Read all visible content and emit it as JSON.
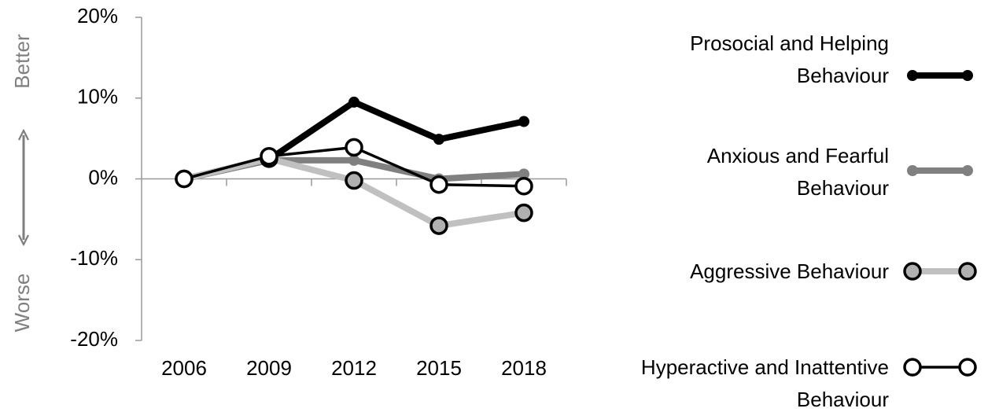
{
  "chart_data": {
    "type": "line",
    "categories": [
      "2006",
      "2009",
      "2012",
      "2015",
      "2018"
    ],
    "series": [
      {
        "name": "Prosocial and Helping Behaviour",
        "color": "#000000",
        "values": [
          0,
          2.4,
          9.5,
          4.9,
          7.1
        ]
      },
      {
        "name": "Anxious and Fearful Behaviour",
        "color": "#808080",
        "values": [
          0,
          2.3,
          2.3,
          0,
          0.6
        ]
      },
      {
        "name": "Aggressive Behaviour",
        "color": "#c0c0c0",
        "values": [
          0,
          2.5,
          -0.2,
          -5.8,
          -4.2
        ]
      },
      {
        "name": "Hyperactive and Inattentive Behaviour",
        "color": "#000000",
        "values": [
          0,
          2.8,
          3.9,
          -0.7,
          -0.9
        ]
      }
    ],
    "ylim": [
      -20,
      20
    ],
    "yticks": [
      {
        "value": -20,
        "label": "-20%"
      },
      {
        "value": -10,
        "label": "-10%"
      },
      {
        "value": 0,
        "label": "0%"
      },
      {
        "value": 10,
        "label": "10%"
      },
      {
        "value": 20,
        "label": "20%"
      }
    ],
    "annotations": [
      "Better",
      "Worse"
    ],
    "legend": "right"
  }
}
